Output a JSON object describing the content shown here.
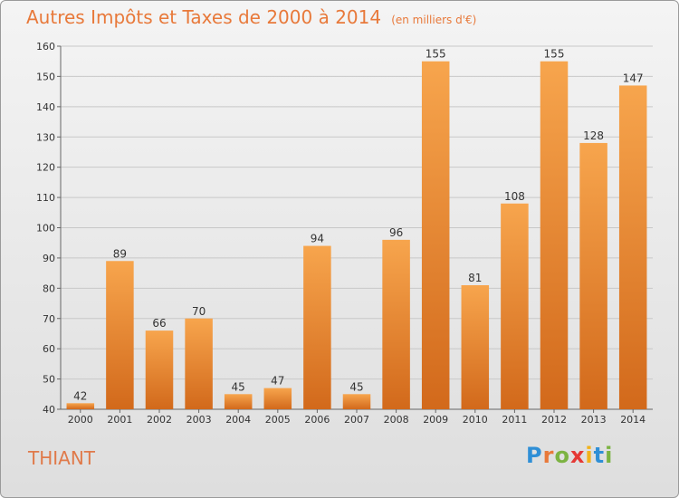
{
  "title": "Autres Impôts et Taxes de 2000 à 2014",
  "unit": "(en milliers d'€)",
  "commune": "THIANT",
  "logo": {
    "text": "Proxiti",
    "letters": [
      {
        "ch": "P",
        "color": "#2f8fd6"
      },
      {
        "ch": "r",
        "color": "#e8793a"
      },
      {
        "ch": "o",
        "color": "#7cb342"
      },
      {
        "ch": "x",
        "color": "#e53935"
      },
      {
        "ch": "i",
        "color": "#f2b31b"
      },
      {
        "ch": "t",
        "color": "#2f8fd6"
      },
      {
        "ch": "i",
        "color": "#7cb342"
      }
    ]
  },
  "colors": {
    "bar_light": "#f7a54d",
    "bar_dark": "#d2691b",
    "text_orange": "#e8793a",
    "grid": "#c8c8c8"
  },
  "chart_data": {
    "type": "bar",
    "title": "Autres Impôts et Taxes de 2000 à 2014",
    "categories": [
      "2000",
      "2001",
      "2002",
      "2003",
      "2004",
      "2005",
      "2006",
      "2007",
      "2008",
      "2009",
      "2010",
      "2011",
      "2012",
      "2013",
      "2014"
    ],
    "values": [
      42,
      89,
      66,
      70,
      45,
      47,
      94,
      45,
      96,
      155,
      81,
      108,
      155,
      128,
      147
    ],
    "ylim": [
      40,
      160
    ],
    "yticks": [
      40,
      50,
      60,
      70,
      80,
      90,
      100,
      110,
      120,
      130,
      140,
      150,
      160
    ],
    "grid": true
  }
}
